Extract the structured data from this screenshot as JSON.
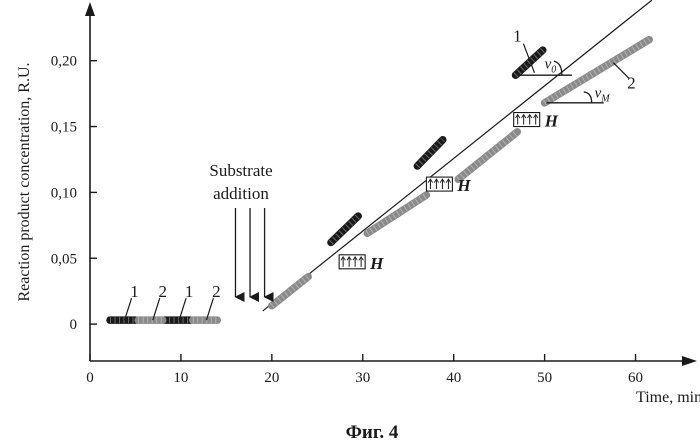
{
  "figure_caption": "Фиг. 4",
  "chart_data": {
    "type": "line",
    "xlabel": "Time, min",
    "ylabel": "Reaction product concentration, R.U.",
    "xlim": [
      0,
      65
    ],
    "ylim": [
      -0.028,
      0.24
    ],
    "x_ticks": [
      0,
      10,
      20,
      30,
      40,
      50,
      60
    ],
    "y_ticks": [
      0,
      0.05,
      0.1,
      0.15,
      0.2
    ],
    "y_tick_labels": [
      "0",
      "0,05",
      "0,10",
      "0,15",
      "0,20"
    ],
    "grid": false,
    "series": [
      {
        "name": "1",
        "color": "#1a1a1a",
        "segments": [
          [
            [
              2.2,
              0.003
            ],
            [
              5.0,
              0.003
            ]
          ],
          [
            [
              8.2,
              0.003
            ],
            [
              11.0,
              0.003
            ]
          ],
          [
            [
              26.5,
              0.062
            ],
            [
              29.5,
              0.082
            ]
          ],
          [
            [
              36.0,
              0.12
            ],
            [
              38.8,
              0.14
            ]
          ],
          [
            [
              46.8,
              0.189
            ],
            [
              49.8,
              0.208
            ]
          ]
        ]
      },
      {
        "name": "2",
        "color": "#8a8a8a",
        "segments": [
          [
            [
              5.3,
              0.003
            ],
            [
              8.0,
              0.003
            ]
          ],
          [
            [
              11.3,
              0.003
            ],
            [
              14.0,
              0.003
            ]
          ],
          [
            [
              20.0,
              0.014
            ],
            [
              24.0,
              0.036
            ]
          ],
          [
            [
              30.5,
              0.069
            ],
            [
              37.0,
              0.098
            ]
          ],
          [
            [
              40.5,
              0.11
            ],
            [
              47.0,
              0.146
            ]
          ],
          [
            [
              50.0,
              0.168
            ],
            [
              61.5,
              0.216
            ]
          ]
        ]
      }
    ],
    "trend_line": [
      [
        19.0,
        0.01
      ],
      [
        61.8,
        0.246
      ]
    ],
    "annotations": {
      "series_labels": [
        {
          "text": "1",
          "x": 3.8,
          "y": 0.003
        },
        {
          "text": "2",
          "x": 6.9,
          "y": 0.003
        },
        {
          "text": "1",
          "x": 9.8,
          "y": 0.003
        },
        {
          "text": "2",
          "x": 12.8,
          "y": 0.003
        },
        {
          "text": "1",
          "x": 48.0,
          "y": 0.2
        },
        {
          "text": "2",
          "x": 58.0,
          "y": 0.2
        }
      ],
      "substrate_text": [
        "Substrate",
        "addition"
      ],
      "substrate_arrows_x": [
        16.0,
        17.6,
        19.2
      ],
      "slope_labels": [
        {
          "symbol": "v",
          "subscript": "0",
          "x": 50.0,
          "y": 0.194
        },
        {
          "symbol": "v",
          "subscript": "M",
          "x": 55.5,
          "y": 0.172
        }
      ],
      "h_marks": [
        {
          "text": "H",
          "x": 27.4,
          "y": 0.042
        },
        {
          "text": "H",
          "x": 37.0,
          "y": 0.101
        },
        {
          "text": "H",
          "x": 46.6,
          "y": 0.15
        }
      ]
    }
  }
}
